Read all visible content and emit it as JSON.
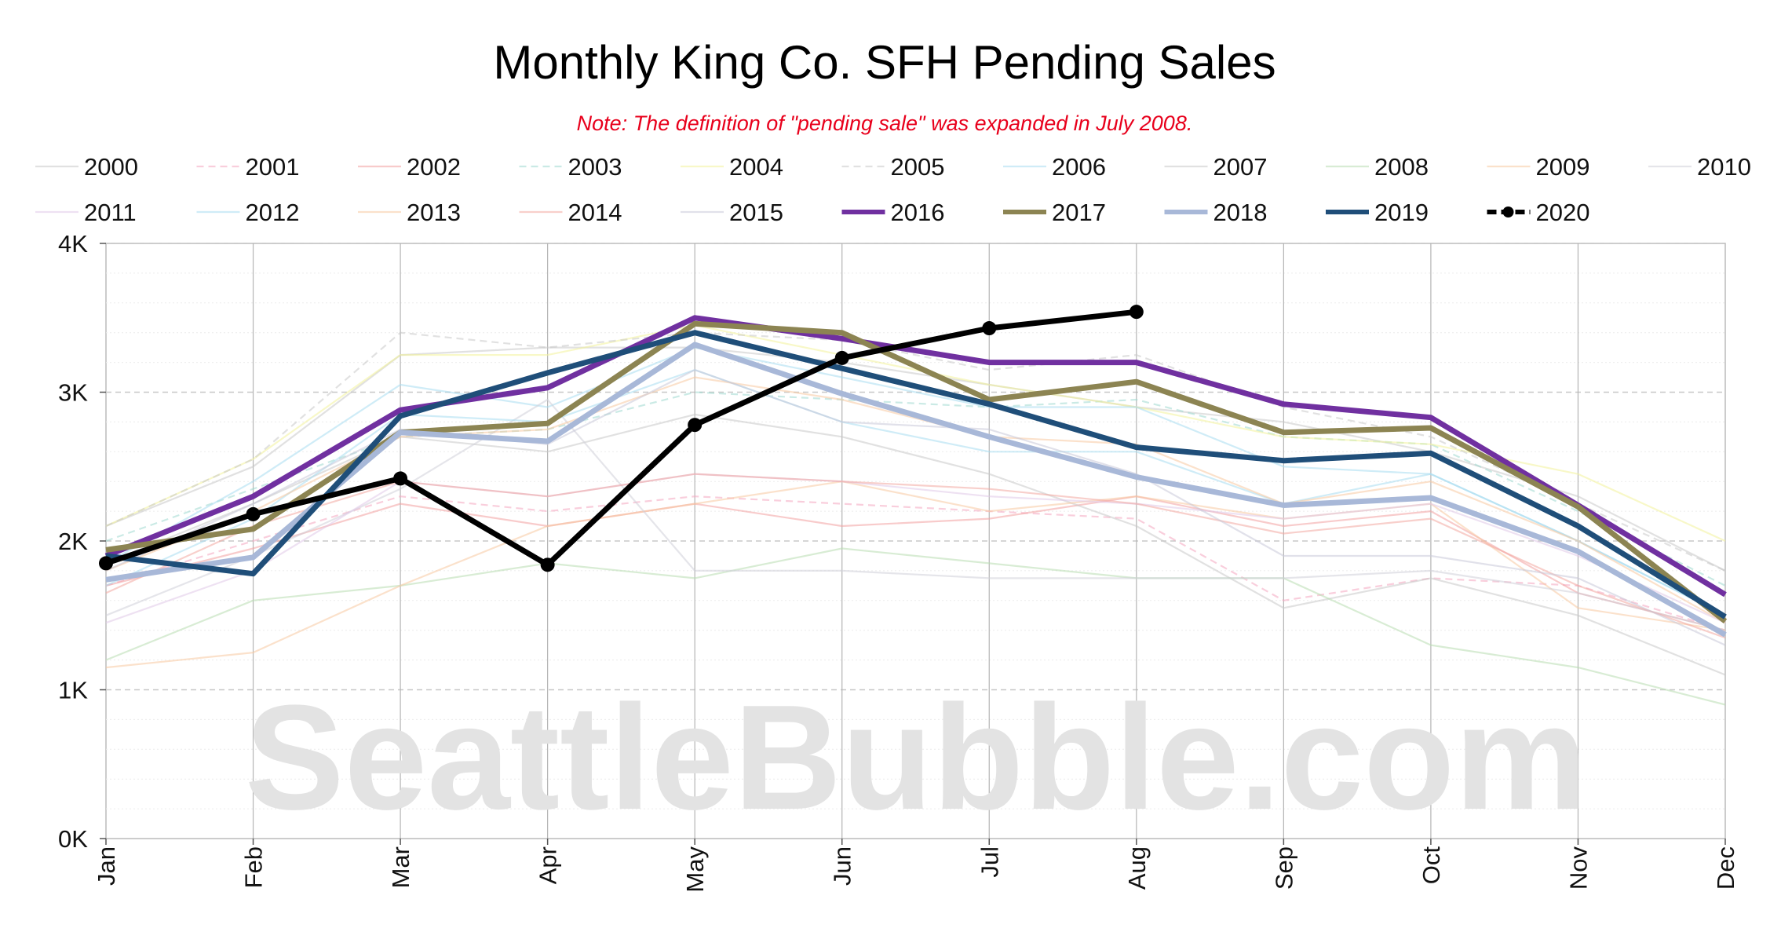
{
  "chart_data": {
    "type": "line",
    "title": "Monthly King Co. SFH Pending Sales",
    "subtitle": "Note: The definition of \"pending sale\" was expanded in July 2008.",
    "watermark": "SeattleBubble.com",
    "categories": [
      "Jan",
      "Feb",
      "Mar",
      "Apr",
      "May",
      "Jun",
      "Jul",
      "Aug",
      "Sep",
      "Oct",
      "Nov",
      "Dec"
    ],
    "y_ticks": [
      "0K",
      "1K",
      "2K",
      "3K",
      "4K"
    ],
    "ylim": [
      0,
      4000
    ],
    "grid": true,
    "legend_position": "top",
    "series": [
      {
        "name": "2000",
        "color": "#c8c8c8",
        "style": "faint",
        "values": [
          2100,
          2500,
          3250,
          3300,
          3300,
          3200,
          3050,
          2900,
          2800,
          2600,
          2300,
          1800
        ]
      },
      {
        "name": "2001",
        "color": "#f4a6c0",
        "style": "faint-dashed",
        "values": [
          1700,
          2000,
          2300,
          2200,
          2300,
          2250,
          2200,
          2150,
          1600,
          1750,
          1700,
          1400
        ]
      },
      {
        "name": "2002",
        "color": "#f2a0a0",
        "style": "faint",
        "values": [
          1700,
          1950,
          2250,
          2100,
          2250,
          2100,
          2150,
          2300,
          2100,
          2200,
          1650,
          1400
        ]
      },
      {
        "name": "2003",
        "color": "#9fd8d0",
        "style": "faint-dashed",
        "values": [
          2000,
          2350,
          2700,
          2750,
          3000,
          2950,
          2900,
          2950,
          2700,
          2650,
          2200,
          1700
        ]
      },
      {
        "name": "2004",
        "color": "#f3f39a",
        "style": "faint",
        "values": [
          2100,
          2550,
          3250,
          3250,
          3450,
          3250,
          3050,
          2900,
          2700,
          2650,
          2450,
          2000
        ]
      },
      {
        "name": "2005",
        "color": "#c9c9c9",
        "style": "faint-dashed",
        "values": [
          2100,
          2550,
          3400,
          3300,
          3400,
          3350,
          3150,
          3250,
          2900,
          2700,
          2250,
          1800
        ]
      },
      {
        "name": "2006",
        "color": "#a8dcf0",
        "style": "faint",
        "values": [
          1850,
          2400,
          3050,
          2900,
          3300,
          3100,
          2900,
          2900,
          2500,
          2450,
          2000,
          1500
        ]
      },
      {
        "name": "2007",
        "color": "#c8c8c8",
        "style": "faint",
        "values": [
          1850,
          2250,
          2700,
          2600,
          2850,
          2700,
          2450,
          2100,
          1550,
          1750,
          1500,
          1100
        ]
      },
      {
        "name": "2008",
        "color": "#b8ddb0",
        "style": "faint",
        "values": [
          1200,
          1600,
          1700,
          1850,
          1750,
          1950,
          1850,
          1750,
          1750,
          1300,
          1150,
          900
        ]
      },
      {
        "name": "2009",
        "color": "#f8c8a0",
        "style": "faint",
        "values": [
          1150,
          1250,
          1700,
          2100,
          2250,
          2400,
          2200,
          2300,
          2150,
          2250,
          1550,
          1400
        ]
      },
      {
        "name": "2010",
        "color": "#d0d0d8",
        "style": "faint",
        "values": [
          1500,
          1900,
          2350,
          2950,
          1800,
          1800,
          1750,
          1750,
          1750,
          1800,
          1650,
          1400
        ]
      },
      {
        "name": "2011",
        "color": "#e0c8e8",
        "style": "faint",
        "values": [
          1450,
          1800,
          2400,
          2300,
          2450,
          2400,
          2300,
          2250,
          2150,
          2250,
          1900,
          1450
        ]
      },
      {
        "name": "2012",
        "color": "#a8dcf0",
        "style": "faint",
        "values": [
          1700,
          2150,
          2850,
          2800,
          3150,
          2800,
          2600,
          2600,
          2250,
          2450,
          2000,
          1500
        ]
      },
      {
        "name": "2013",
        "color": "#f8c8a0",
        "style": "faint",
        "values": [
          1800,
          2200,
          2700,
          2750,
          3100,
          2950,
          2700,
          2650,
          2250,
          2400,
          2000,
          1450
        ]
      },
      {
        "name": "2014",
        "color": "#f2a8a0",
        "style": "faint",
        "values": [
          1650,
          2100,
          2400,
          2300,
          2450,
          2400,
          2350,
          2250,
          2050,
          2150,
          1700,
          1350
        ]
      },
      {
        "name": "2015",
        "color": "#c8c8d8",
        "style": "faint",
        "values": [
          1800,
          2250,
          2750,
          2650,
          3150,
          2800,
          2750,
          2450,
          1900,
          1900,
          1750,
          1300
        ]
      },
      {
        "name": "2016",
        "color": "#7030a0",
        "style": "bold",
        "values": [
          1900,
          2300,
          2880,
          3030,
          3500,
          3360,
          3200,
          3200,
          2920,
          2830,
          2240,
          1640
        ]
      },
      {
        "name": "2017",
        "color": "#8c8452",
        "style": "bold",
        "values": [
          1940,
          2080,
          2730,
          2790,
          3460,
          3400,
          2950,
          3070,
          2730,
          2760,
          2230,
          1460
        ]
      },
      {
        "name": "2018",
        "color": "#a8b8d8",
        "style": "bold",
        "values": [
          1740,
          1890,
          2730,
          2670,
          3320,
          2990,
          2700,
          2430,
          2240,
          2290,
          1930,
          1370
        ]
      },
      {
        "name": "2019",
        "color": "#1f4e79",
        "style": "bold",
        "values": [
          1900,
          1780,
          2840,
          3130,
          3400,
          3160,
          2920,
          2630,
          2540,
          2590,
          2100,
          1490
        ]
      },
      {
        "name": "2020",
        "color": "#000000",
        "style": "markers",
        "values": [
          1850,
          2180,
          2420,
          1840,
          2780,
          3230,
          3430,
          3540,
          null,
          null,
          null,
          null
        ]
      }
    ]
  }
}
